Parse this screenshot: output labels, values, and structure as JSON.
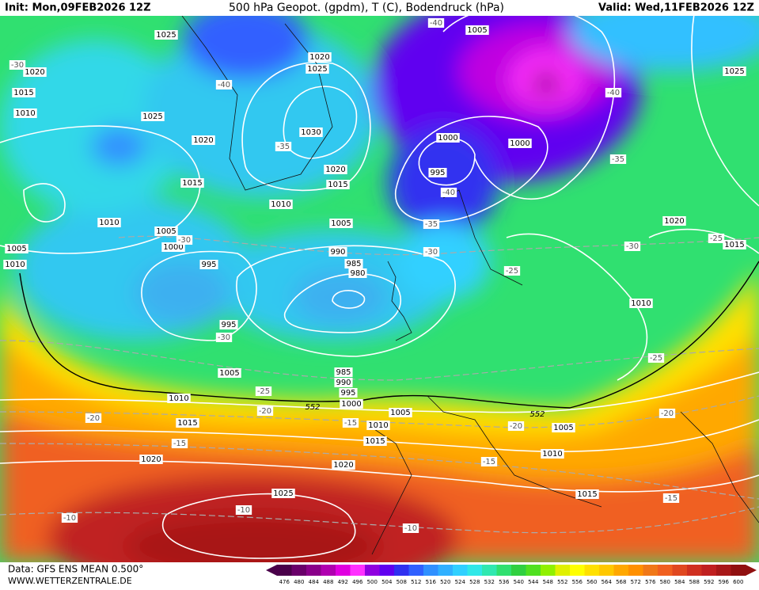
{
  "header": {
    "init": "Init: Mon,09FEB2026 12Z",
    "title": "500 hPa Geopot. (gpdm), T (C), Bodendruck (hPa)",
    "valid": "Valid: Wed,11FEB2026 12Z"
  },
  "map": {
    "pressure_labels": [
      "1025",
      "1005",
      "1020",
      "1025",
      "1020",
      "1025",
      "1015",
      "1010",
      "1025",
      "1030",
      "1000",
      "1000",
      "1020",
      "1020",
      "995",
      "1015",
      "1015",
      "1010",
      "1010",
      "1020",
      "1005",
      "1005",
      "1000",
      "1015",
      "1005",
      "1010",
      "995",
      "990",
      "985",
      "980",
      "1010",
      "995",
      "985",
      "990",
      "995",
      "1005",
      "1010",
      "1000",
      "1005",
      "1015",
      "1010",
      "1005",
      "1015",
      "1020",
      "1020",
      "1010",
      "1015",
      "1025"
    ],
    "temperature_labels": [
      "-30",
      "-40",
      "-40",
      "-40",
      "-35",
      "-35",
      "-40",
      "-35",
      "-30",
      "-30",
      "-30",
      "-25",
      "-25",
      "-30",
      "-25",
      "-25",
      "-20",
      "-20",
      "-15",
      "-20",
      "-20",
      "-15",
      "-15",
      "-15",
      "-10",
      "-10",
      "-10"
    ],
    "geopotential_labels": [
      "552",
      "552"
    ]
  },
  "colorbar": {
    "labels": [
      476,
      480,
      484,
      488,
      492,
      496,
      500,
      504,
      508,
      512,
      516,
      520,
      524,
      528,
      532,
      536,
      540,
      544,
      548,
      552,
      556,
      560,
      564,
      568,
      572,
      576,
      580,
      584,
      588,
      592,
      596,
      600
    ],
    "colors": [
      "#4a004a",
      "#6a006a",
      "#8a008a",
      "#b000b0",
      "#e000e0",
      "#ff30ff",
      "#9000e0",
      "#6000f0",
      "#3030f0",
      "#3060ff",
      "#3090ff",
      "#30b0ff",
      "#30d0ff",
      "#30e8e8",
      "#30e8b0",
      "#30e070",
      "#30d040",
      "#50e020",
      "#90f000",
      "#e0f000",
      "#ffff00",
      "#ffe000",
      "#ffc800",
      "#ffa800",
      "#ff9000",
      "#f07818",
      "#f06020",
      "#e04820",
      "#d03020",
      "#c02020",
      "#a81818",
      "#901010"
    ]
  },
  "footer": {
    "data": "Data: GFS ENS MEAN 0.500°",
    "site": "WWW.WETTERZENTRALE.DE"
  }
}
